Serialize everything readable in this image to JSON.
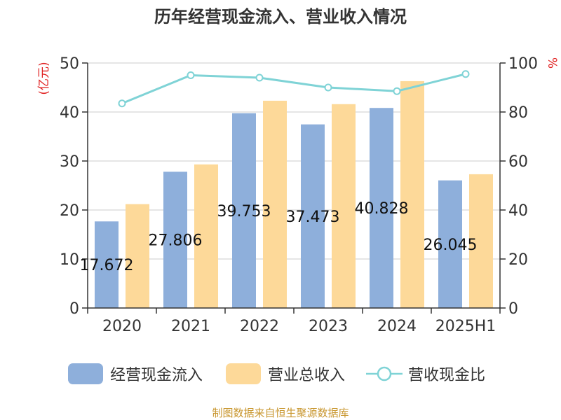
{
  "title": "历年经营现金流入、营业收入情况",
  "source_note": "制图数据来自恒生聚源数据库",
  "colors": {
    "cash_inflow": "#8eafdb",
    "revenue": "#fdd999",
    "ratio": "#7fd3d6",
    "axis_unit": "#e02020",
    "axis": "#333333",
    "grid": "#cccccc"
  },
  "chart_data": {
    "type": "bar",
    "title": "历年经营现金流入、营业收入情况",
    "categories": [
      "2020",
      "2021",
      "2022",
      "2023",
      "2024",
      "2025H1"
    ],
    "y_left": {
      "label": "(亿元)",
      "ticks": [
        "0",
        "10",
        "20",
        "30",
        "40",
        "50"
      ],
      "lim": [
        0,
        50
      ]
    },
    "y_right": {
      "label": "%",
      "ticks": [
        "0",
        "20",
        "40",
        "60",
        "80",
        "100"
      ],
      "lim": [
        0,
        100
      ]
    },
    "grid": true,
    "legend_position": "bottom",
    "series": [
      {
        "name": "经营现金流入",
        "type": "bar",
        "axis": "left",
        "values": [
          17.672,
          27.806,
          39.753,
          37.473,
          40.828,
          26.045
        ],
        "data_labels": [
          "17.672",
          "27.806",
          "39.753",
          "37.473",
          "40.828",
          "26.045"
        ]
      },
      {
        "name": "营业总收入",
        "type": "bar",
        "axis": "left",
        "values": [
          21.2,
          29.3,
          42.3,
          41.6,
          46.3,
          27.3
        ]
      },
      {
        "name": "营收现金比",
        "type": "line",
        "axis": "right",
        "values": [
          83.5,
          95.0,
          94.0,
          90.0,
          88.5,
          95.5
        ]
      }
    ]
  }
}
